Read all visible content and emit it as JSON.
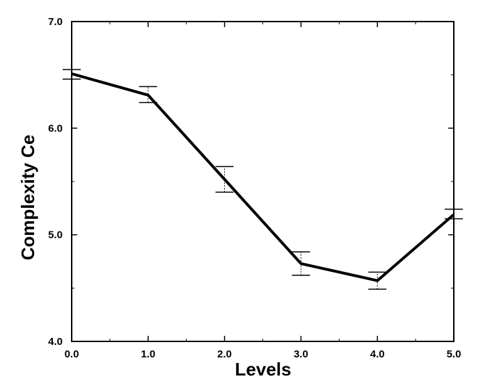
{
  "chart_data": {
    "type": "line",
    "title": "",
    "xlabel": "Levels",
    "ylabel": "Complexity Ce",
    "xlim": [
      0,
      5
    ],
    "ylim": [
      4,
      7
    ],
    "xticks": [
      0,
      1,
      2,
      3,
      4,
      5
    ],
    "xtick_labels": [
      "0.0",
      "1.0",
      "2.0",
      "3.0",
      "4.0",
      "5.0"
    ],
    "yticks": [
      4,
      5,
      6,
      7
    ],
    "ytick_labels": [
      "4.0",
      "5.0",
      "6.0",
      "7.0"
    ],
    "grid": false,
    "legend": "none",
    "series": [
      {
        "x": [
          0,
          1,
          2,
          3,
          4,
          5
        ],
        "y": [
          6.51,
          6.31,
          5.52,
          4.73,
          4.57,
          5.19
        ],
        "err_low": [
          6.46,
          6.24,
          5.4,
          4.62,
          4.49,
          5.15
        ],
        "err_high": [
          6.55,
          6.39,
          5.64,
          4.84,
          4.65,
          5.24
        ],
        "color": "#000000"
      }
    ]
  }
}
